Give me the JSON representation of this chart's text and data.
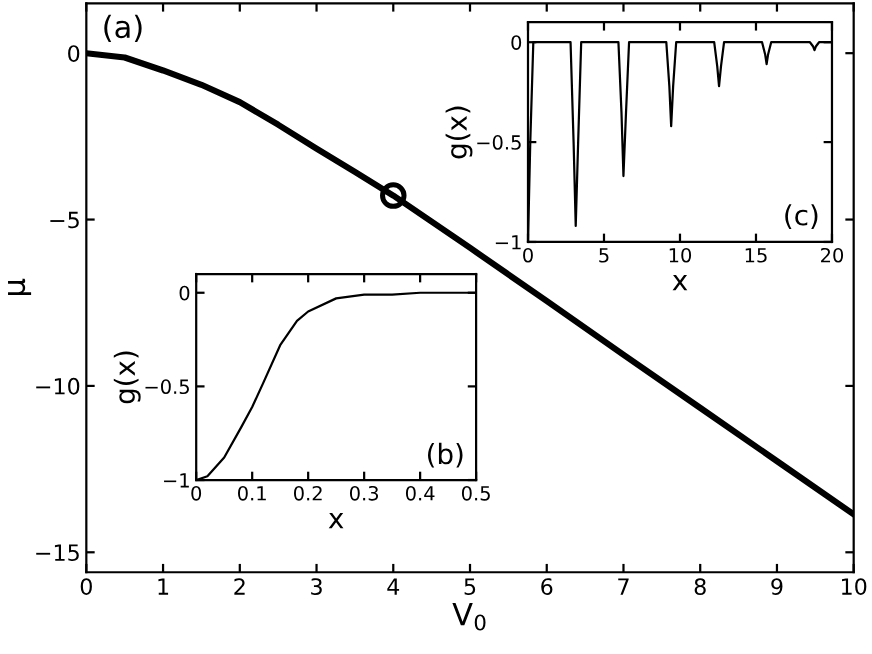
{
  "chart_data": [
    {
      "type": "line",
      "xlabel": "V$_{0}$",
      "ylabel": "μ",
      "annotations": [
        "(a)"
      ],
      "xlim": [
        0,
        10
      ],
      "ylim": [
        -15.6,
        1.5
      ],
      "xticks": [
        0,
        1,
        2,
        3,
        4,
        5,
        6,
        7,
        8,
        9,
        10
      ],
      "yticks": [
        {
          "value": -15,
          "label": "−15"
        },
        {
          "value": -10,
          "label": "−10"
        },
        {
          "value": -5,
          "label": "−5"
        },
        0
      ],
      "grid": false,
      "legend": false,
      "series": [
        {
          "color": "#000000",
          "x": [
            0,
            0.5,
            1,
            1.5,
            2,
            2.5,
            3,
            3.5,
            4,
            5,
            6,
            7,
            8,
            9,
            10
          ],
          "values": [
            0,
            -0.13,
            -0.52,
            -0.95,
            -1.47,
            -2.15,
            -2.87,
            -3.57,
            -4.28,
            -5.85,
            -7.45,
            -9.06,
            -10.66,
            -12.26,
            -13.86
          ]
        },
        {
          "type": "scatter",
          "marker": "circle",
          "color": "#000000",
          "x": [
            4
          ],
          "values": [
            -4.28
          ]
        }
      ]
    },
    {
      "type": "line",
      "xlabel": "x",
      "ylabel": "g(x)",
      "annotations": [
        "(b)"
      ],
      "xlim": [
        0,
        0.5
      ],
      "ylim": [
        -1,
        0.1
      ],
      "xticks": [
        0,
        0.1,
        0.2,
        0.3,
        0.4,
        0.5
      ],
      "yticks": [
        {
          "value": -1,
          "label": "−1"
        },
        {
          "value": -0.5,
          "label": "−0.5"
        },
        0
      ],
      "grid": false,
      "legend": false,
      "series": [
        {
          "color": "#000000",
          "x": [
            0,
            0.02,
            0.05,
            0.08,
            0.1,
            0.12,
            0.15,
            0.18,
            0.2,
            0.25,
            0.3,
            0.35,
            0.4,
            0.5
          ],
          "values": [
            -1,
            -0.98,
            -0.88,
            -0.72,
            -0.61,
            -0.48,
            -0.28,
            -0.15,
            -0.1,
            -0.03,
            -0.01,
            -0.01,
            0,
            0
          ]
        }
      ]
    },
    {
      "type": "line",
      "xlabel": "x",
      "ylabel": "g(x)",
      "annotations": [
        "(c)"
      ],
      "xlim": [
        0,
        20
      ],
      "ylim": [
        -1,
        0.1
      ],
      "xticks": [
        0,
        5,
        10,
        15,
        20
      ],
      "yticks": [
        {
          "value": -1,
          "label": "−1"
        },
        {
          "value": -0.5,
          "label": "−0.5"
        },
        0
      ],
      "grid": false,
      "legend": false,
      "series": [
        {
          "color": "#000000",
          "x": [
            0,
            0.15,
            0.35,
            2.8,
            3.0,
            3.14,
            3.3,
            3.5,
            5.95,
            6.15,
            6.28,
            6.45,
            6.65,
            9.1,
            9.3,
            9.42,
            9.55,
            9.75,
            12.25,
            12.45,
            12.57,
            12.7,
            12.9,
            15.4,
            15.6,
            15.7,
            15.8,
            16.0,
            18.55,
            18.75,
            18.85,
            18.95,
            19.15,
            20
          ],
          "values": [
            -1,
            -0.5,
            0,
            0,
            -0.5,
            -0.92,
            -0.5,
            0,
            0,
            -0.35,
            -0.67,
            -0.35,
            0,
            0,
            -0.22,
            -0.42,
            -0.22,
            0,
            0,
            -0.12,
            -0.22,
            -0.12,
            0,
            0,
            -0.06,
            -0.11,
            -0.06,
            0,
            0,
            -0.02,
            -0.04,
            -0.02,
            0,
            0
          ]
        }
      ]
    }
  ]
}
